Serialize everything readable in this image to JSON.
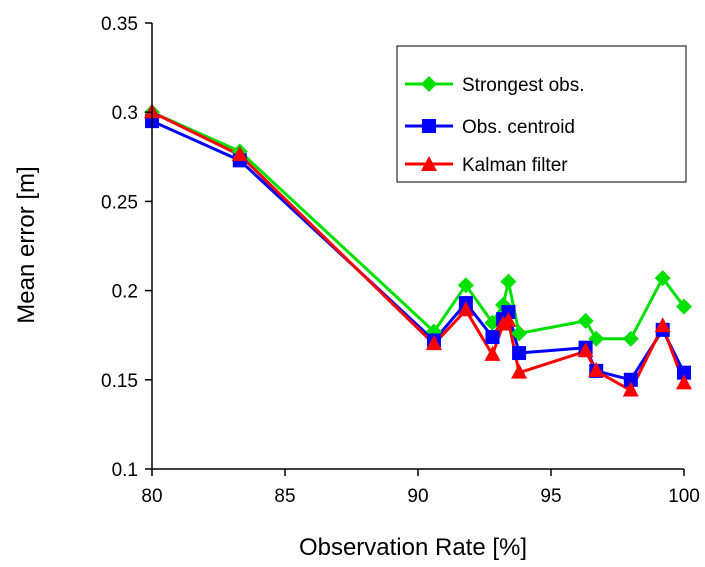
{
  "chart_data": {
    "type": "line",
    "title": "",
    "xlabel": "Observation Rate [%]",
    "ylabel": "Mean error [m]",
    "xlim": [
      80,
      100
    ],
    "ylim": [
      0.1,
      0.35
    ],
    "x_ticks": [
      80,
      85,
      90,
      95,
      100
    ],
    "x_tick_labels": [
      "80",
      "85",
      "90",
      "95",
      "100"
    ],
    "y_ticks": [
      0.1,
      0.15,
      0.2,
      0.25,
      0.3,
      0.35
    ],
    "y_tick_labels": [
      "0.1",
      "0.15",
      "0.2",
      "0.25",
      "0.3",
      "0.35"
    ],
    "grid": false,
    "legend_position": "top-right",
    "series": [
      {
        "name": "Strongest obs.",
        "color": "#00e000",
        "marker": "diamond",
        "points": [
          [
            80,
            0.3
          ],
          [
            83.3,
            0.278
          ],
          [
            90.6,
            0.177
          ],
          [
            91.8,
            0.203
          ],
          [
            92.8,
            0.182
          ],
          [
            93.2,
            0.192
          ],
          [
            93.4,
            0.205
          ],
          [
            93.8,
            0.176
          ],
          [
            96.3,
            0.183
          ],
          [
            96.7,
            0.173
          ],
          [
            98.0,
            0.173
          ],
          [
            99.2,
            0.207
          ],
          [
            100,
            0.191
          ]
        ]
      },
      {
        "name": "Obs. centroid",
        "color": "#0000ff",
        "marker": "square",
        "points": [
          [
            80,
            0.295
          ],
          [
            83.3,
            0.273
          ],
          [
            90.6,
            0.172
          ],
          [
            91.8,
            0.193
          ],
          [
            92.8,
            0.174
          ],
          [
            93.2,
            0.184
          ],
          [
            93.4,
            0.188
          ],
          [
            93.8,
            0.165
          ],
          [
            96.3,
            0.168
          ],
          [
            96.7,
            0.155
          ],
          [
            98.0,
            0.15
          ],
          [
            99.2,
            0.178
          ],
          [
            100,
            0.154
          ]
        ]
      },
      {
        "name": "Kalman filter",
        "color": "#ff0000",
        "marker": "triangle",
        "points": [
          [
            80,
            0.3
          ],
          [
            83.3,
            0.276
          ],
          [
            90.6,
            0.17
          ],
          [
            91.8,
            0.189
          ],
          [
            92.8,
            0.164
          ],
          [
            93.2,
            0.181
          ],
          [
            93.4,
            0.183
          ],
          [
            93.8,
            0.154
          ],
          [
            96.3,
            0.166
          ],
          [
            96.7,
            0.155
          ],
          [
            98.0,
            0.144
          ],
          [
            99.2,
            0.18
          ],
          [
            100,
            0.148
          ]
        ]
      }
    ]
  }
}
